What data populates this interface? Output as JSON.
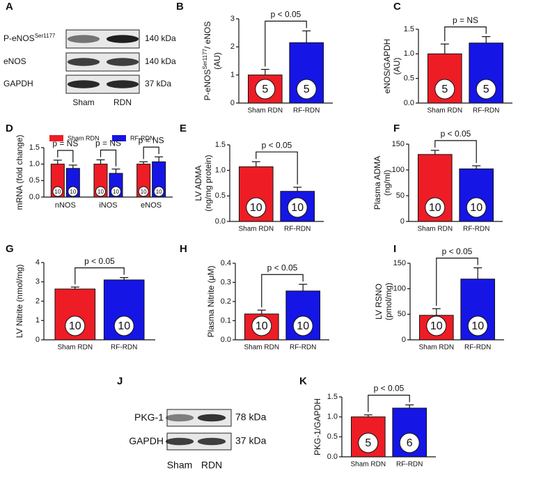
{
  "chart_data": [
    {
      "type": "bar",
      "panel": "B",
      "ylabel": [
        [
          {
            "text": "P-eNOS"
          },
          {
            "text": "Ser1177",
            "sup": true
          },
          {
            "text": "/ eNOS"
          }
        ],
        [
          {
            "text": "(AU)"
          }
        ]
      ],
      "categories": [
        "Sham RDN",
        "RF-RDN"
      ],
      "values": [
        1.0,
        2.15
      ],
      "errors": [
        0.2,
        0.42
      ],
      "colors": [
        "#ee1c25",
        "#1515e6"
      ],
      "n_labels": [
        "5",
        "5"
      ],
      "annotation": "p < 0.05",
      "ylim": [
        0,
        3
      ],
      "yticks": [
        0,
        1,
        2,
        3
      ]
    },
    {
      "type": "bar",
      "panel": "C",
      "ylabel": [
        [
          {
            "text": "eNOS/GAPDH"
          }
        ],
        [
          {
            "text": "(AU)"
          }
        ]
      ],
      "categories": [
        "Sham RDN",
        "RF-RDN"
      ],
      "values": [
        1.0,
        1.22
      ],
      "errors": [
        0.2,
        0.13
      ],
      "colors": [
        "#ee1c25",
        "#1515e6"
      ],
      "n_labels": [
        "5",
        "5"
      ],
      "annotation": "p = NS",
      "ylim": [
        0,
        1.5
      ],
      "yticks": [
        {
          "value": 0,
          "label": "0.0"
        },
        0.5,
        {
          "value": 1,
          "label": "1.0"
        },
        1.5
      ]
    },
    {
      "type": "grouped_bar",
      "panel": "D",
      "ylabel": [
        [
          {
            "text": "mRNA (fold change)"
          }
        ]
      ],
      "categories": [
        "nNOS",
        "iNOS",
        "eNOS"
      ],
      "series": [
        {
          "name": "Sham RDN",
          "color": "#ee1c25",
          "values": [
            1.0,
            1.0,
            1.0
          ],
          "errors": [
            0.12,
            0.13,
            0.07
          ],
          "n_labels": [
            "10",
            "10",
            "10"
          ]
        },
        {
          "name": "RF-RDN",
          "color": "#1515e6",
          "values": [
            0.87,
            0.72,
            1.07
          ],
          "errors": [
            0.1,
            0.13,
            0.15
          ],
          "n_labels": [
            "10",
            "10",
            "10"
          ]
        }
      ],
      "annotations": [
        "p = NS",
        "p = NS",
        "p = NS"
      ],
      "ylim": [
        0,
        1.5
      ],
      "yticks": [
        {
          "value": 0,
          "label": "0.0"
        },
        0.5,
        {
          "value": 1,
          "label": "1.0"
        },
        1.5
      ]
    },
    {
      "type": "bar",
      "panel": "E",
      "ylabel": [
        [
          {
            "text": "LV ADMA"
          }
        ],
        [
          {
            "text": "(ng/mg protein)"
          }
        ]
      ],
      "categories": [
        "Sham RDN",
        "RF-RDN"
      ],
      "values": [
        1.07,
        0.59
      ],
      "errors": [
        0.1,
        0.08
      ],
      "colors": [
        "#ee1c25",
        "#1515e6"
      ],
      "n_labels": [
        "10",
        "10"
      ],
      "annotation": "p < 0.05",
      "ylim": [
        0,
        1.5
      ],
      "yticks": [
        {
          "value": 0,
          "label": "0.0"
        },
        0.5,
        {
          "value": 1,
          "label": "1.0"
        },
        1.5
      ]
    },
    {
      "type": "bar",
      "panel": "F",
      "ylabel": [
        [
          {
            "text": "Plasma ADMA"
          }
        ],
        [
          {
            "text": "(ng/ml)"
          }
        ]
      ],
      "categories": [
        "Sham RDN",
        "RF-RDN"
      ],
      "values": [
        130,
        102
      ],
      "errors": [
        8,
        6
      ],
      "colors": [
        "#ee1c25",
        "#1515e6"
      ],
      "n_labels": [
        "10",
        "10"
      ],
      "annotation": "p < 0.05",
      "ylim": [
        0,
        150
      ],
      "yticks": [
        0,
        50,
        100,
        150
      ]
    },
    {
      "type": "bar",
      "panel": "G",
      "ylabel": [
        [
          {
            "text": "LV Nitrite (nmol/mg)"
          }
        ]
      ],
      "categories": [
        "Sham RDN",
        "RF-RDN"
      ],
      "values": [
        2.63,
        3.1
      ],
      "errors": [
        0.1,
        0.12
      ],
      "colors": [
        "#ee1c25",
        "#1515e6"
      ],
      "n_labels": [
        "10",
        "10"
      ],
      "annotation": "p < 0.05",
      "ylim": [
        0,
        4
      ],
      "yticks": [
        0,
        1,
        2,
        3,
        4
      ]
    },
    {
      "type": "bar",
      "panel": "H",
      "ylabel": [
        [
          {
            "text": "Plasma Nitrite (μM)"
          }
        ]
      ],
      "categories": [
        "Sham RDN",
        "RF-RDN"
      ],
      "values": [
        0.135,
        0.255
      ],
      "errors": [
        0.02,
        0.035
      ],
      "colors": [
        "#ee1c25",
        "#1515e6"
      ],
      "n_labels": [
        "10",
        "10"
      ],
      "annotation": "p < 0.05",
      "ylim": [
        0,
        0.4
      ],
      "yticks": [
        {
          "value": 0,
          "label": "0.0"
        },
        0.1,
        0.2,
        0.3,
        0.4
      ]
    },
    {
      "type": "bar",
      "panel": "I",
      "ylabel": [
        [
          {
            "text": "LV RSNO"
          }
        ],
        [
          {
            "text": "(pmol/mg)"
          }
        ]
      ],
      "categories": [
        "Sham RDN",
        "RF-RDN"
      ],
      "values": [
        48,
        119
      ],
      "errors": [
        13,
        22
      ],
      "colors": [
        "#ee1c25",
        "#1515e6"
      ],
      "n_labels": [
        "10",
        "10"
      ],
      "annotation": "p < 0.05",
      "ylim": [
        0,
        150
      ],
      "yticks": [
        0,
        50,
        100,
        150
      ]
    },
    {
      "type": "bar",
      "panel": "K",
      "ylabel": [
        [
          {
            "text": "PKG-1/GAPDH"
          }
        ]
      ],
      "categories": [
        "Sham RDN",
        "RF-RDN"
      ],
      "values": [
        1.0,
        1.22
      ],
      "errors": [
        0.05,
        0.08
      ],
      "colors": [
        "#ee1c25",
        "#1515e6"
      ],
      "n_labels": [
        "5",
        "6"
      ],
      "annotation": "p < 0.05",
      "ylim": [
        0,
        1.5
      ],
      "yticks": [
        {
          "value": 0,
          "label": "0.0"
        },
        0.5,
        {
          "value": 1,
          "label": "1.0"
        },
        1.5
      ]
    }
  ],
  "blots": [
    {
      "panel": "A",
      "rows": [
        {
          "label": "P-eNOS",
          "label_sup": "Ser1177",
          "size": "140 kDa"
        },
        {
          "label": "eNOS",
          "size": "140 kDa"
        },
        {
          "label": "GAPDH",
          "size": "37 kDa"
        }
      ],
      "lanes": [
        "Sham",
        "RDN"
      ]
    },
    {
      "panel": "J",
      "rows": [
        {
          "label": "PKG-1",
          "size": "78 kDa"
        },
        {
          "label": "GAPDH",
          "size": "37 kDa"
        }
      ],
      "lanes": [
        "Sham",
        "RDN"
      ]
    }
  ]
}
